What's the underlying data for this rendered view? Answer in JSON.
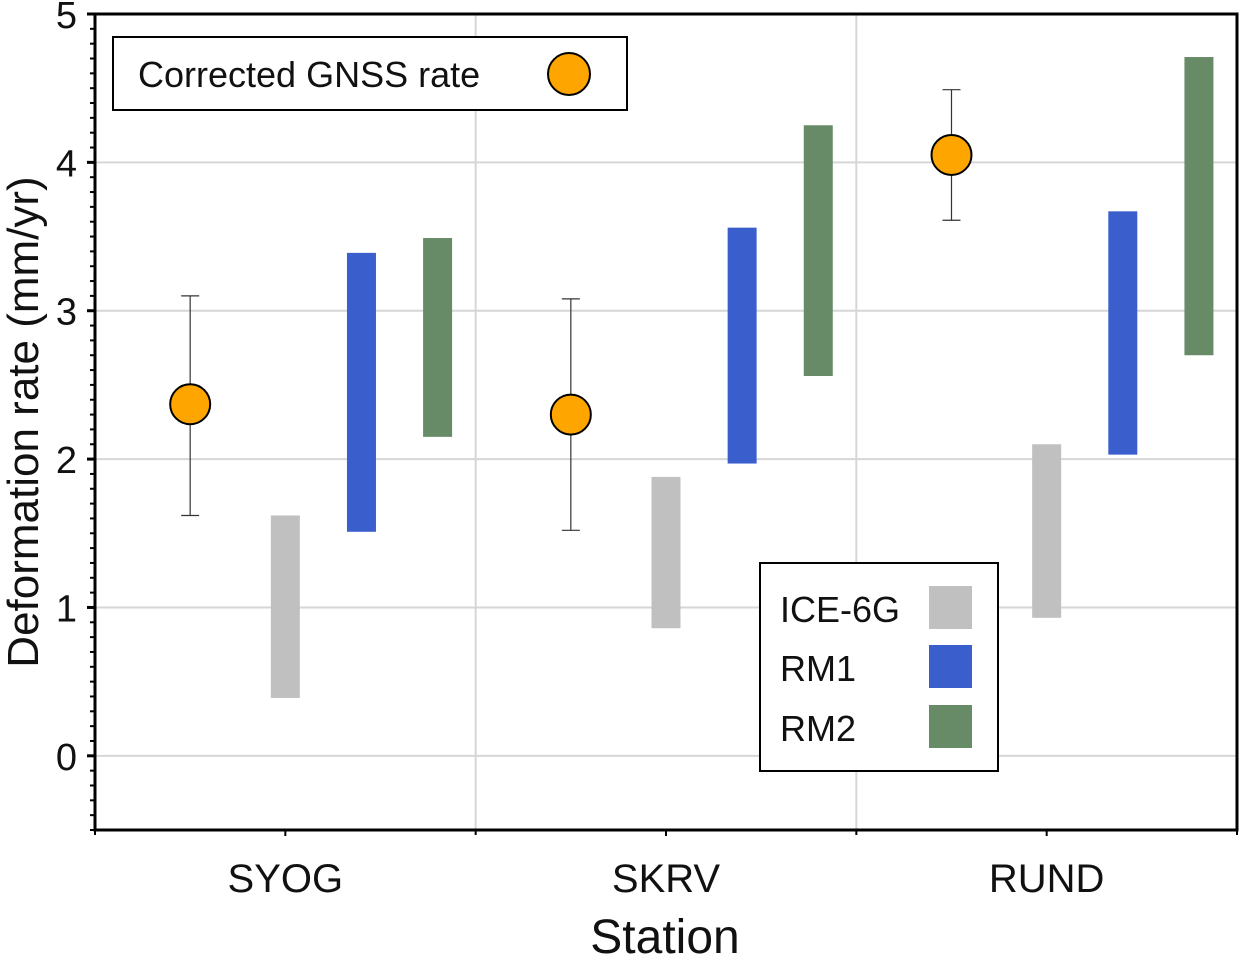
{
  "chart_data": {
    "type": "range-bar-with-errorbars",
    "title": "",
    "xlabel": "Station",
    "ylabel": "Deformation rate (mm/yr)",
    "categories": [
      "SYOG",
      "SKRV",
      "RUND"
    ],
    "ylim": [
      -0.5,
      5
    ],
    "yticks": [
      0,
      1,
      2,
      3,
      4,
      5
    ],
    "grid": true,
    "gnss": {
      "name": "Corrected GNSS rate",
      "color": "#FFA500",
      "values": [
        2.37,
        2.3,
        4.05
      ],
      "upper": [
        3.1,
        3.08,
        4.49
      ],
      "lower": [
        1.62,
        1.52,
        3.61
      ]
    },
    "series": [
      {
        "name": "ICE-6G",
        "color": "#C0C0C0",
        "low": [
          0.39,
          0.86,
          0.93
        ],
        "high": [
          1.62,
          1.88,
          2.1
        ]
      },
      {
        "name": "RM1",
        "color": "#3A5FCD",
        "low": [
          1.51,
          1.97,
          2.03
        ],
        "high": [
          3.39,
          3.56,
          3.67
        ]
      },
      {
        "name": "RM2",
        "color": "#668B66",
        "low": [
          2.15,
          2.56,
          2.7
        ],
        "high": [
          3.49,
          4.25,
          4.71
        ]
      }
    ],
    "legend_gnss_placement": "top-left",
    "legend_models_placement": "bottom-center-right"
  }
}
